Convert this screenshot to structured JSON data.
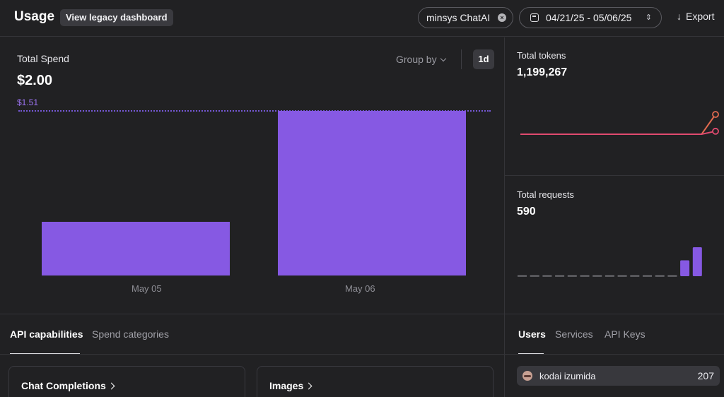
{
  "header": {
    "title": "Usage",
    "legacy_label": "View legacy dashboard",
    "project": "minsys ChatAI",
    "date_range": "04/21/25 - 05/06/25",
    "export_label": "Export"
  },
  "spend": {
    "label": "Total Spend",
    "value": "$2.00",
    "group_by_label": "Group by",
    "interval_label": "1d",
    "max_label": "$1.51"
  },
  "chart_data": [
    {
      "type": "bar",
      "categories": [
        "May 05",
        "May 06"
      ],
      "values": [
        0.49,
        1.51
      ],
      "max_line": 1.51,
      "colors": [
        "#8659e3"
      ]
    },
    {
      "type": "line",
      "series": [
        {
          "values": [
            0,
            0,
            0,
            0,
            0,
            0,
            0,
            0,
            0,
            0,
            0,
            0,
            0,
            0,
            1
          ],
          "color": "#e06a4f"
        },
        {
          "values": [
            0,
            0,
            0,
            0,
            0,
            0,
            0,
            0,
            0,
            0,
            0,
            0,
            0,
            0,
            0.15
          ],
          "color": "#e04a6f"
        }
      ]
    },
    {
      "type": "bar",
      "values": [
        0,
        0,
        0,
        0,
        0,
        0,
        0,
        0,
        0,
        0,
        0,
        0,
        0,
        0.55,
        1
      ],
      "colors": [
        "#8659e3"
      ]
    }
  ],
  "tokens": {
    "label": "Total tokens",
    "value": "1,199,267"
  },
  "requests": {
    "label": "Total requests",
    "value": "590"
  },
  "tabs_left": {
    "api_capabilities": "API capabilities",
    "spend_categories": "Spend categories"
  },
  "tabs_right": {
    "users": "Users",
    "services": "Services",
    "api_keys": "API Keys"
  },
  "cards": {
    "chat_completions": "Chat Completions",
    "images": "Images"
  },
  "users": [
    {
      "name": "kodai izumida",
      "count": "207"
    }
  ],
  "icons": {
    "clear": "x-circle-icon",
    "calendar": "calendar-icon",
    "updown": "chevron-updown-icon",
    "export": "download-arrow-icon",
    "group_chevron": "chevron-down-icon",
    "card_chevron": "chevron-right-icon"
  }
}
